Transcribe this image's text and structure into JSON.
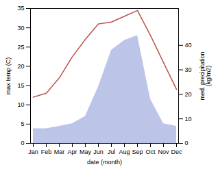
{
  "chart_data": {
    "type": "line",
    "xlabel": "date (month)",
    "ylabel": "max temp (C)",
    "y2label": "med. precipitation\n(kg/m2)",
    "categories": [
      "Jan",
      "Feb",
      "Mar",
      "Apr",
      "May",
      "Jun",
      "Jul",
      "Aug",
      "Sep",
      "Oct",
      "Nov",
      "Dec"
    ],
    "series": [
      {
        "type": "area",
        "axis": "y2",
        "color": "#bcc5e8",
        "values": [
          6,
          6,
          7,
          8,
          11,
          23,
          38,
          42,
          44,
          18,
          8,
          7
        ]
      },
      {
        "type": "line",
        "color": "#c0504d",
        "values": [
          12.0,
          13.0,
          17.0,
          22.5,
          27.0,
          31.0,
          31.5,
          33.0,
          34.5,
          28.0,
          21.0,
          14.0
        ]
      }
    ],
    "ylim": [
      0,
      35
    ],
    "yticks": [
      0,
      5,
      10,
      15,
      20,
      25,
      30,
      35
    ],
    "y2lim": [
      0,
      55
    ],
    "y2ticks": [
      0,
      10,
      20,
      30,
      40
    ]
  }
}
